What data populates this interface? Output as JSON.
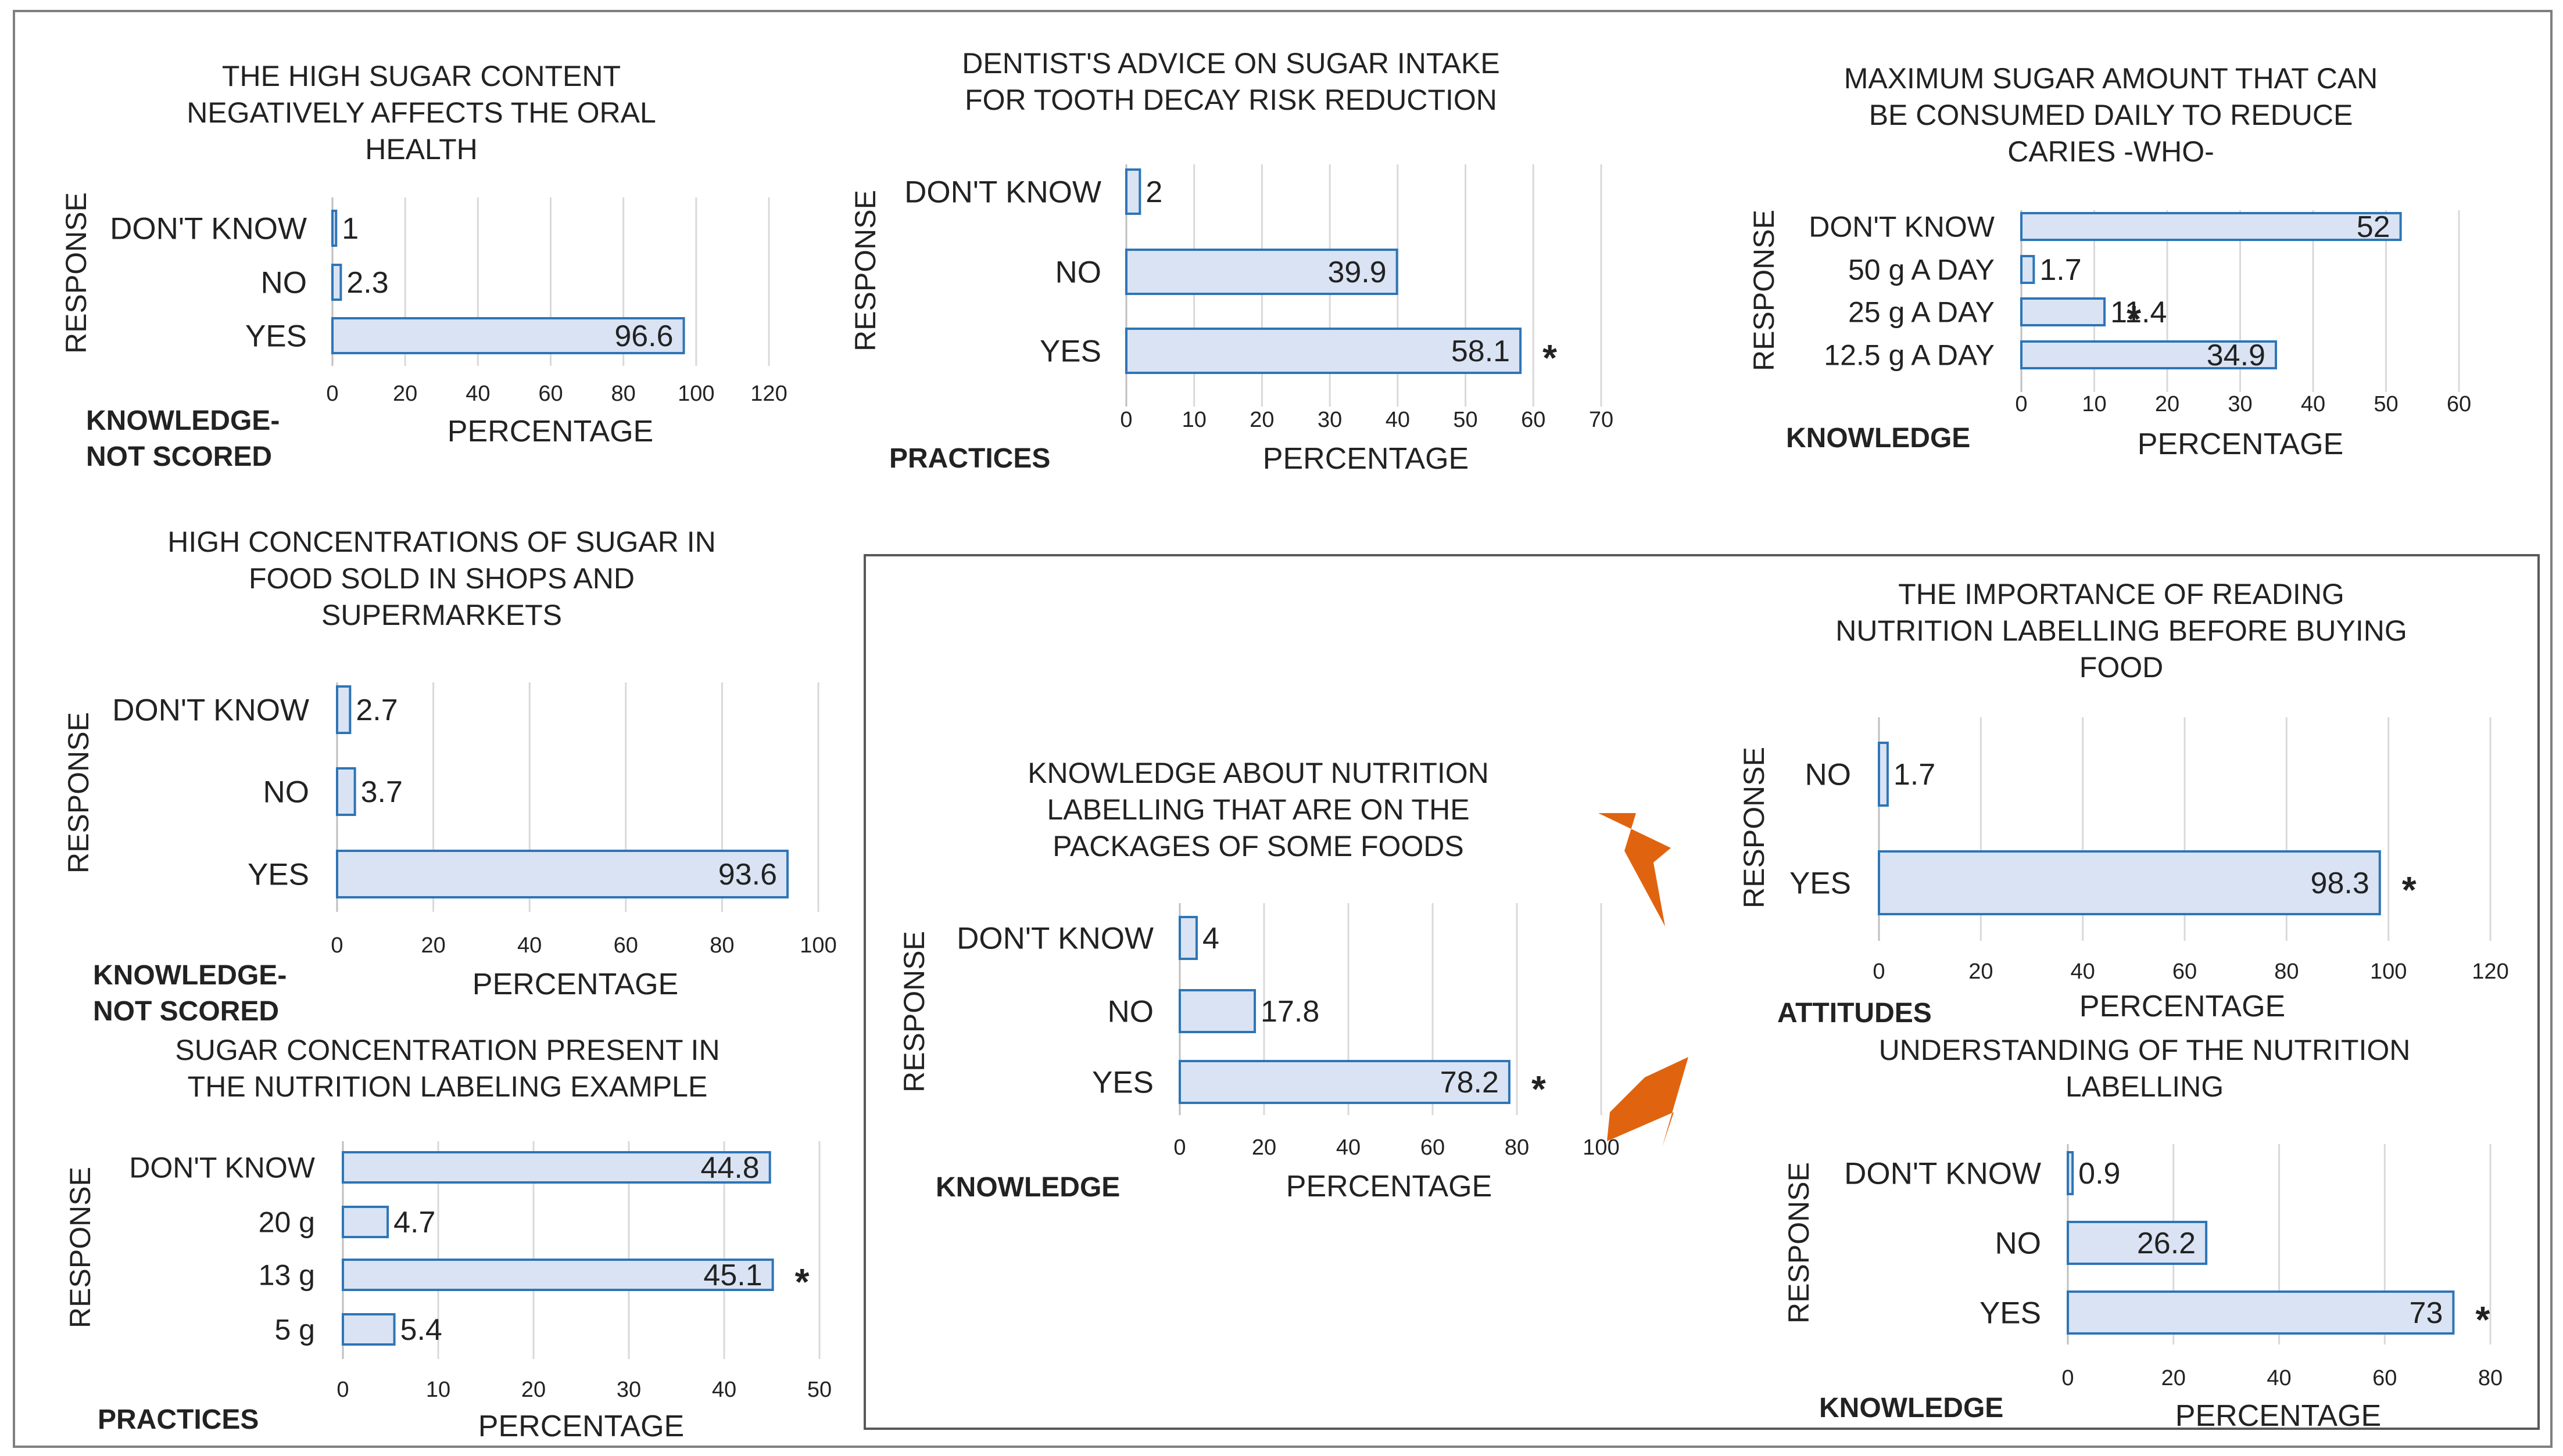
{
  "colors": {
    "bar_fill": "#d9e3f3",
    "bar_stroke": "#2e75b6",
    "grid": "#d9d9d9",
    "text": "#222222",
    "arrow": "#e0640f",
    "frame": "#7f7f7f"
  },
  "chart_data": [
    {
      "id": "high-sugar-oral-health",
      "type": "bar",
      "orientation": "horizontal",
      "title": [
        "THE HIGH SUGAR CONTENT",
        "NEGATIVELY AFFECTS THE ORAL",
        "HEALTH"
      ],
      "categories": [
        "DON'T KNOW",
        "NO",
        "YES"
      ],
      "values": [
        1,
        2.3,
        96.6
      ],
      "value_labels": [
        "1",
        "2.3",
        "96.6"
      ],
      "correct_index": -1,
      "marker": "*",
      "xlim": [
        0,
        120
      ],
      "xticks": [
        0,
        20,
        40,
        60,
        80,
        100,
        120
      ],
      "xticklabels": [
        "0",
        "20",
        "40",
        "60",
        "80",
        "100",
        "120"
      ],
      "xlabel": "PERCENTAGE",
      "ylabel": "RESPONSE",
      "category_label": [
        "KNOWLEDGE-",
        "NOT SCORED"
      ]
    },
    {
      "id": "dentist-advice",
      "type": "bar",
      "orientation": "horizontal",
      "title": [
        "DENTIST'S ADVICE ON SUGAR INTAKE",
        "FOR TOOTH DECAY RISK REDUCTION"
      ],
      "categories": [
        "DON'T KNOW",
        "NO",
        "YES"
      ],
      "values": [
        2,
        39.9,
        58.1
      ],
      "value_labels": [
        "2",
        "39.9",
        "58.1"
      ],
      "correct_index": 2,
      "marker": "*",
      "xlim": [
        0,
        70
      ],
      "xticks": [
        0,
        10,
        20,
        30,
        40,
        50,
        60,
        70
      ],
      "xticklabels": [
        "0",
        "10",
        "20",
        "30",
        "40",
        "50",
        "60",
        "70"
      ],
      "xlabel": "PERCENTAGE",
      "ylabel": "RESPONSE",
      "category_label": [
        "PRACTICES"
      ]
    },
    {
      "id": "max-sugar-who",
      "type": "bar",
      "orientation": "horizontal",
      "title": [
        "MAXIMUM SUGAR AMOUNT THAT CAN",
        "BE CONSUMED DAILY TO REDUCE",
        "CARIES -WHO-"
      ],
      "categories": [
        "DON'T KNOW",
        "50 g A DAY",
        "25 g A DAY",
        "12.5 g A DAY"
      ],
      "values": [
        52,
        1.7,
        11.4,
        34.9
      ],
      "value_labels": [
        "52",
        "1.7",
        "11.4",
        "34.9"
      ],
      "correct_index": 2,
      "marker": "*",
      "xlim": [
        0,
        60
      ],
      "xticks": [
        0,
        10,
        20,
        30,
        40,
        50,
        60
      ],
      "xticklabels": [
        "0",
        "10",
        "20",
        "30",
        "40",
        "50",
        "60"
      ],
      "xlabel": "PERCENTAGE",
      "ylabel": "RESPONSE",
      "category_label": [
        "KNOWLEDGE"
      ]
    },
    {
      "id": "high-concentrations-shops",
      "type": "bar",
      "orientation": "horizontal",
      "title": [
        "HIGH CONCENTRATIONS OF SUGAR IN",
        "FOOD SOLD IN SHOPS AND",
        "SUPERMARKETS"
      ],
      "categories": [
        "DON'T KNOW",
        "NO",
        "YES"
      ],
      "values": [
        2.7,
        3.7,
        93.6
      ],
      "value_labels": [
        "2.7",
        "3.7",
        "93.6"
      ],
      "correct_index": -1,
      "marker": "*",
      "xlim": [
        0,
        100
      ],
      "xticks": [
        0,
        20,
        40,
        60,
        80,
        100
      ],
      "xticklabels": [
        "0",
        "20",
        "40",
        "60",
        "80",
        "100"
      ],
      "xlabel": "PERCENTAGE",
      "ylabel": "RESPONSE",
      "category_label": [
        "KNOWLEDGE-",
        "NOT SCORED"
      ]
    },
    {
      "id": "sugar-concentration-labeling",
      "type": "bar",
      "orientation": "horizontal",
      "title": [
        "SUGAR CONCENTRATION PRESENT IN",
        "THE NUTRITION LABELING EXAMPLE"
      ],
      "categories": [
        "DON'T KNOW",
        "20 g",
        "13 g",
        "5 g"
      ],
      "values": [
        44.8,
        4.7,
        45.1,
        5.4
      ],
      "value_labels": [
        "44.8",
        "4.7",
        "45.1",
        "5.4"
      ],
      "correct_index": 2,
      "marker": "*",
      "xlim": [
        0,
        50
      ],
      "xticks": [
        0,
        10,
        20,
        30,
        40,
        50
      ],
      "xticklabels": [
        "0",
        "10",
        "20",
        "30",
        "40",
        "50"
      ],
      "xlabel": "PERCENTAGE",
      "ylabel": "RESPONSE",
      "category_label": [
        "PRACTICES"
      ]
    },
    {
      "id": "knowledge-nutrition-labelling",
      "type": "bar",
      "orientation": "horizontal",
      "title": [
        "KNOWLEDGE ABOUT NUTRITION",
        "LABELLING THAT ARE ON THE",
        "PACKAGES OF SOME FOODS"
      ],
      "categories": [
        "DON'T KNOW",
        "NO",
        "YES"
      ],
      "values": [
        4,
        17.8,
        78.2
      ],
      "value_labels": [
        "4",
        "17.8",
        "78.2"
      ],
      "correct_index": 2,
      "marker": "*",
      "xlim": [
        0,
        100
      ],
      "xticks": [
        0,
        20,
        40,
        60,
        80,
        100
      ],
      "xticklabels": [
        "0",
        "20",
        "40",
        "60",
        "80",
        "100"
      ],
      "xlabel": "PERCENTAGE",
      "ylabel": "RESPONSE",
      "category_label": [
        "KNOWLEDGE"
      ]
    },
    {
      "id": "importance-reading-labelling",
      "type": "bar",
      "orientation": "horizontal",
      "title": [
        "THE IMPORTANCE OF READING",
        "NUTRITION LABELLING BEFORE BUYING",
        "FOOD"
      ],
      "categories": [
        "NO",
        "YES"
      ],
      "values": [
        1.7,
        98.3
      ],
      "value_labels": [
        "1.7",
        "98.3"
      ],
      "correct_index": 1,
      "marker": "*",
      "xlim": [
        0,
        120
      ],
      "xticks": [
        0,
        20,
        40,
        60,
        80,
        100,
        120
      ],
      "xticklabels": [
        "0",
        "20",
        "40",
        "60",
        "80",
        "100",
        "120"
      ],
      "xlabel": "PERCENTAGE",
      "ylabel": "RESPONSE",
      "category_label": [
        "ATTITUDES"
      ]
    },
    {
      "id": "understanding-nutrition-labelling",
      "type": "bar",
      "orientation": "horizontal",
      "title": [
        "UNDERSTANDING OF THE NUTRITION",
        "LABELLING"
      ],
      "categories": [
        "DON'T KNOW",
        "NO",
        "YES"
      ],
      "values": [
        0.9,
        26.2,
        73
      ],
      "value_labels": [
        "0.9",
        "26.2",
        "73"
      ],
      "correct_index": 2,
      "marker": "*",
      "xlim": [
        0,
        80
      ],
      "xticks": [
        0,
        20,
        40,
        60,
        80
      ],
      "xticklabels": [
        "0",
        "20",
        "40",
        "60",
        "80"
      ],
      "xlabel": "PERCENTAGE",
      "ylabel": "RESPONSE",
      "category_label": [
        "KNOWLEDGE"
      ]
    }
  ]
}
